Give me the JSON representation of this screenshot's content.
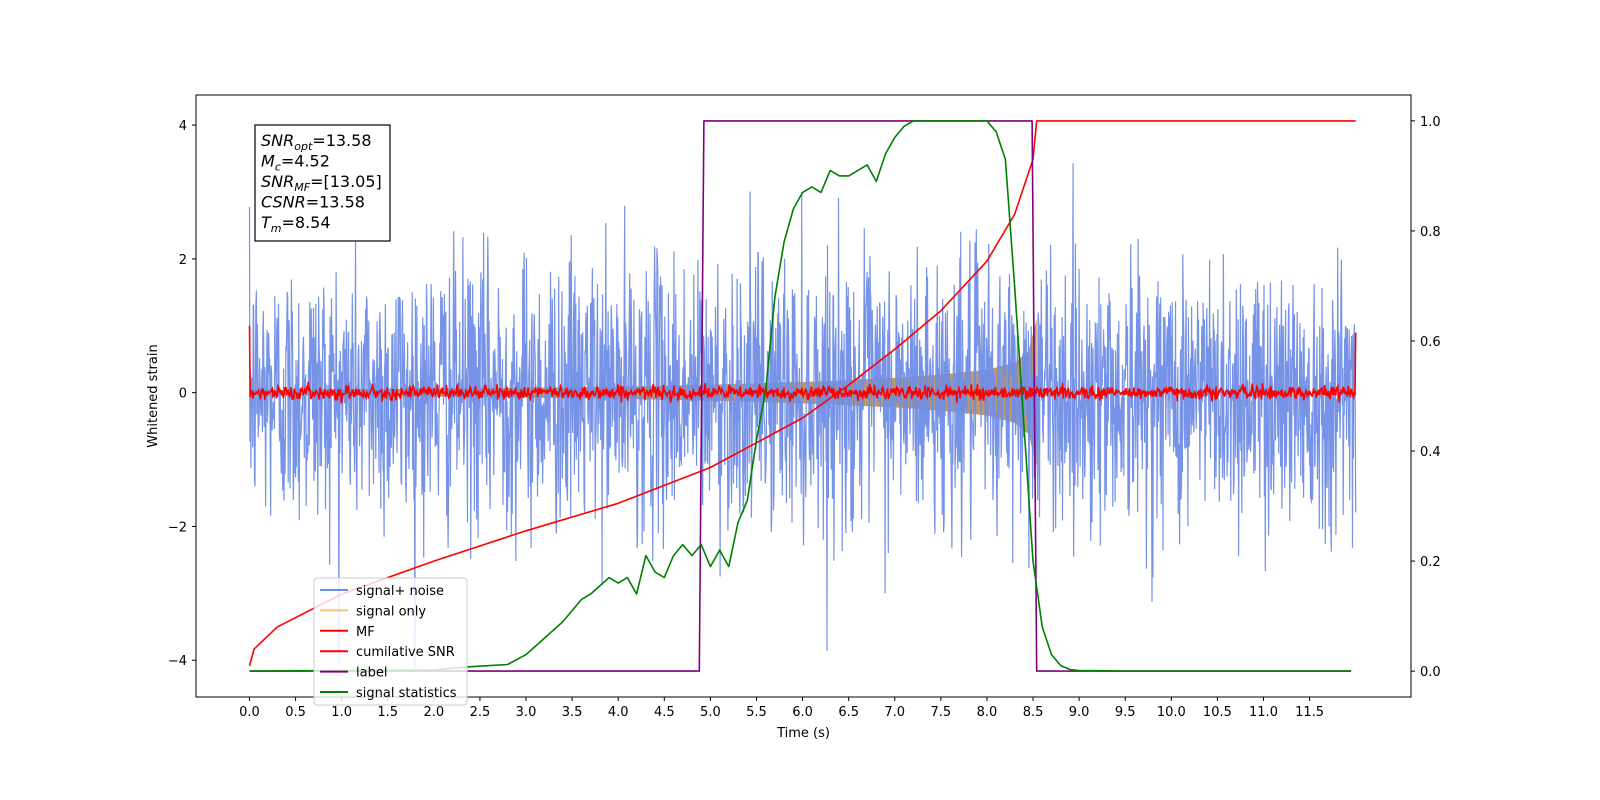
{
  "chart_data": {
    "type": "line",
    "xlabel": "Time (s)",
    "ylabel": "Whitened strain",
    "xlim": [
      -0.58,
      12.6
    ],
    "ylim": [
      -4.55,
      4.45
    ],
    "y2lim": [
      -0.047,
      1.047
    ],
    "x_ticks": [
      "0.0",
      "0.5",
      "1.0",
      "1.5",
      "2.0",
      "2.5",
      "3.0",
      "3.5",
      "4.0",
      "4.5",
      "5.0",
      "5.5",
      "6.0",
      "6.5",
      "7.0",
      "7.5",
      "8.0",
      "8.5",
      "9.0",
      "9.5",
      "10.0",
      "10.5",
      "11.0",
      "11.5"
    ],
    "y_ticks": [
      "−4",
      "−2",
      "0",
      "2",
      "4"
    ],
    "y2_ticks": [
      "0.0",
      "0.2",
      "0.4",
      "0.6",
      "0.8",
      "1.0"
    ],
    "annotation": [
      {
        "base": "SNR",
        "sub": "opt",
        "value": "=13.58"
      },
      {
        "base": "M",
        "sub": "c",
        "value": "=4.52"
      },
      {
        "base": "SNR",
        "sub": "MF",
        "value": "=[13.05]"
      },
      {
        "base": "CSNR",
        "sub": "",
        "value": "=13.58"
      },
      {
        "base": "T",
        "sub": "m",
        "value": "=8.54"
      }
    ],
    "legend_position": "lower-left",
    "series": [
      {
        "name": "signal+ noise",
        "color": "#6f8de6",
        "axis": "left",
        "style": "noise",
        "duration": 12.0,
        "std": 1.0,
        "max_abs": 4.1
      },
      {
        "name": "signal only",
        "color": "#f2c27a",
        "axis": "left",
        "style": "chirp-envelope",
        "envelope_t": [
          0,
          2,
          4,
          5,
          6,
          7,
          7.5,
          8.0,
          8.3,
          8.45,
          8.54
        ],
        "envelope_amp": [
          0.04,
          0.06,
          0.09,
          0.12,
          0.16,
          0.22,
          0.27,
          0.34,
          0.45,
          0.62,
          1.1
        ]
      },
      {
        "name": "MF",
        "color": "#ff0000",
        "axis": "left",
        "style": "small-noise",
        "duration": 12.0,
        "std": 0.05,
        "start_value": 1.0,
        "end_value": 0.9
      },
      {
        "name": "cumilative SNR",
        "color": "#ff0000",
        "axis": "right",
        "x": [
          0.0,
          0.05,
          0.3,
          1,
          2,
          3,
          4,
          5,
          6,
          6.5,
          7,
          7.5,
          8,
          8.3,
          8.5,
          8.54,
          12.0
        ],
        "y": [
          0.01,
          0.04,
          0.08,
          0.14,
          0.2,
          0.255,
          0.305,
          0.37,
          0.46,
          0.52,
          0.585,
          0.655,
          0.745,
          0.83,
          0.93,
          1.0,
          1.0
        ]
      },
      {
        "name": "label",
        "color": "#800080",
        "axis": "right",
        "x": [
          0.0,
          4.88,
          4.93,
          8.49,
          8.54,
          11.95
        ],
        "y": [
          0.0,
          0.0,
          1.0,
          1.0,
          0.0,
          0.0
        ]
      },
      {
        "name": "signal statistics",
        "color": "#008000",
        "axis": "right",
        "x": [
          0.0,
          2.0,
          2.4,
          2.8,
          3.0,
          3.2,
          3.4,
          3.5,
          3.6,
          3.7,
          3.9,
          4.0,
          4.1,
          4.2,
          4.3,
          4.4,
          4.5,
          4.6,
          4.7,
          4.8,
          4.9,
          5.0,
          5.1,
          5.2,
          5.3,
          5.4,
          5.5,
          5.6,
          5.7,
          5.8,
          5.9,
          6.0,
          6.1,
          6.2,
          6.3,
          6.4,
          6.5,
          6.6,
          6.7,
          6.8,
          6.9,
          7.0,
          7.1,
          7.2,
          7.4,
          7.6,
          7.8,
          8.0,
          8.1,
          8.2,
          8.3,
          8.4,
          8.5,
          8.6,
          8.7,
          8.8,
          8.9,
          9.0,
          9.5,
          10.0,
          11.0,
          11.95
        ],
        "y": [
          0.0,
          0.002,
          0.008,
          0.012,
          0.03,
          0.06,
          0.09,
          0.11,
          0.13,
          0.14,
          0.17,
          0.16,
          0.17,
          0.14,
          0.21,
          0.18,
          0.17,
          0.21,
          0.23,
          0.21,
          0.23,
          0.19,
          0.22,
          0.19,
          0.27,
          0.31,
          0.42,
          0.51,
          0.68,
          0.78,
          0.84,
          0.87,
          0.88,
          0.87,
          0.91,
          0.9,
          0.9,
          0.91,
          0.92,
          0.89,
          0.94,
          0.97,
          0.99,
          1.0,
          1.0,
          1.0,
          1.0,
          1.0,
          0.98,
          0.93,
          0.7,
          0.45,
          0.2,
          0.08,
          0.03,
          0.01,
          0.003,
          0.001,
          0.0,
          0.0,
          0.0,
          0.0
        ]
      }
    ]
  }
}
